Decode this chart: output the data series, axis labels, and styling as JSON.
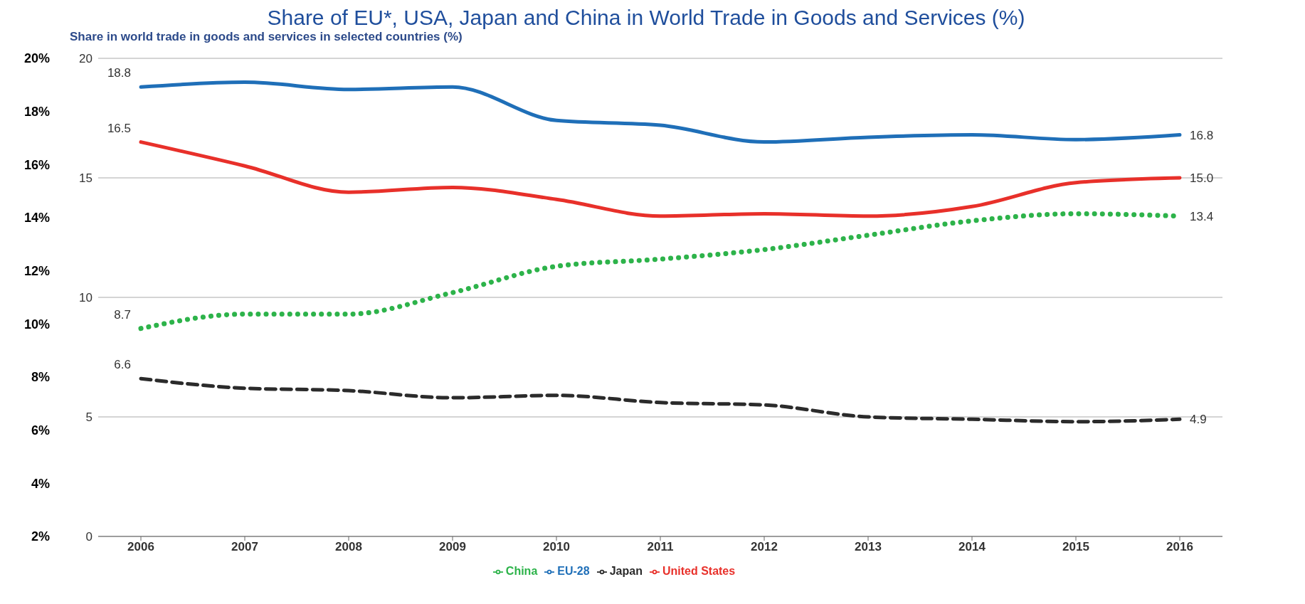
{
  "chart_data": {
    "type": "line",
    "title": "Share of EU*, USA, Japan and China in World Trade in Goods and Services (%)",
    "subtitle": "Share in world trade in goods and services in selected countries (%)",
    "categories": [
      "2006",
      "2007",
      "2008",
      "2009",
      "2010",
      "2011",
      "2012",
      "2013",
      "2014",
      "2015",
      "2016"
    ],
    "series": [
      {
        "name": "China",
        "color": "#2db34a",
        "line_style": "dotted",
        "values": [
          8.7,
          9.3,
          9.3,
          10.2,
          11.3,
          11.6,
          12.0,
          12.6,
          13.2,
          13.5,
          13.4
        ],
        "value_labels": [
          "8.7",
          null,
          null,
          null,
          null,
          null,
          null,
          null,
          null,
          null,
          "13.4"
        ]
      },
      {
        "name": "EU-28",
        "color": "#1f6fb8",
        "line_style": "solid",
        "values": [
          18.8,
          19.0,
          18.7,
          18.8,
          17.4,
          17.2,
          16.5,
          16.7,
          16.8,
          16.6,
          16.8
        ],
        "value_labels": [
          "18.8",
          null,
          null,
          null,
          null,
          null,
          null,
          null,
          null,
          null,
          "16.8"
        ]
      },
      {
        "name": "Japan",
        "color": "#2b2b2b",
        "line_style": "dashed",
        "values": [
          6.6,
          6.2,
          6.1,
          5.8,
          5.9,
          5.6,
          5.5,
          5.0,
          4.9,
          4.8,
          4.9
        ],
        "value_labels": [
          "6.6",
          null,
          null,
          null,
          null,
          null,
          null,
          null,
          null,
          null,
          "4.9"
        ]
      },
      {
        "name": "United States",
        "color": "#e8302a",
        "line_style": "solid",
        "values": [
          16.5,
          15.5,
          14.4,
          14.6,
          14.1,
          13.4,
          13.5,
          13.4,
          13.8,
          14.8,
          15.0
        ],
        "value_labels": [
          "16.5",
          null,
          null,
          null,
          null,
          null,
          null,
          null,
          null,
          null,
          "15.0"
        ]
      }
    ],
    "ylim": [
      0,
      20
    ],
    "yticks": [
      0,
      5,
      10,
      15,
      20
    ],
    "y2lim": [
      2,
      20
    ],
    "y2ticks": [
      {
        "value": 20,
        "label": "20%"
      },
      {
        "value": 18,
        "label": "18%"
      },
      {
        "value": 16,
        "label": "16%"
      },
      {
        "value": 14,
        "label": "14%"
      },
      {
        "value": 12,
        "label": "12%"
      },
      {
        "value": 10,
        "label": "10%"
      },
      {
        "value": 8,
        "label": "8%"
      },
      {
        "value": 6,
        "label": "6%"
      },
      {
        "value": 4,
        "label": "4%"
      },
      {
        "value": 2,
        "label": "2%"
      }
    ],
    "grid": "y",
    "legend": "bottom",
    "marker": "none"
  }
}
